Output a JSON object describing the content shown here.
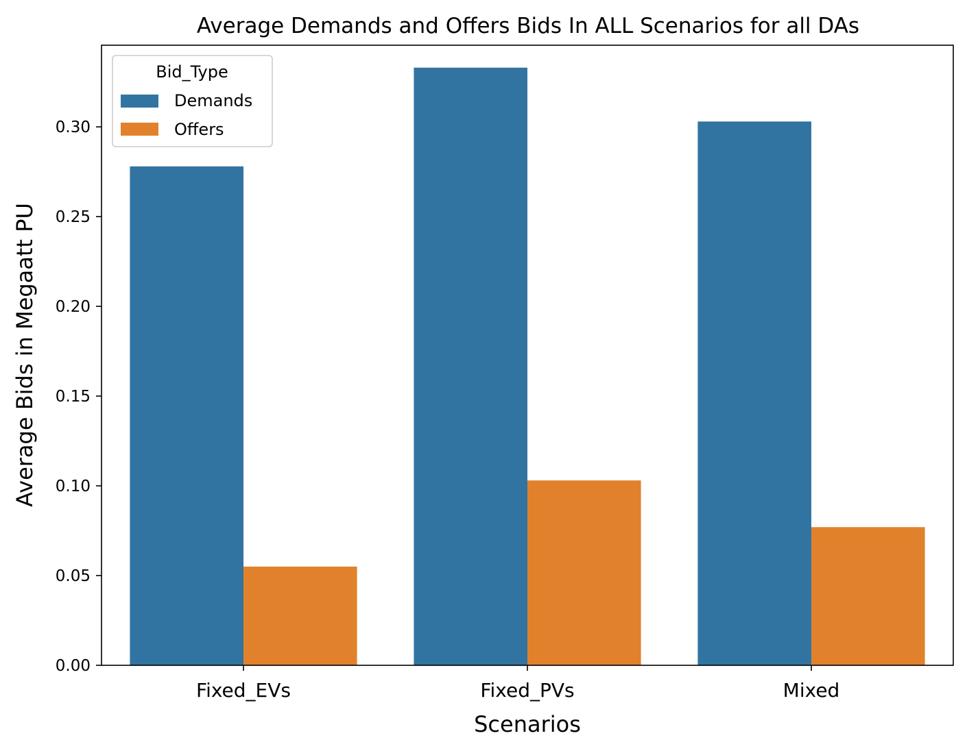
{
  "chart_data": {
    "type": "bar",
    "title": "Average Demands and Offers Bids In ALL Scenarios for all DAs",
    "xlabel": "Scenarios",
    "ylabel": "Average Bids in Megaatt PU",
    "categories": [
      "Fixed_EVs",
      "Fixed_PVs",
      "Mixed"
    ],
    "series": [
      {
        "name": "Demands",
        "values": [
          0.278,
          0.333,
          0.303
        ],
        "color": "#3274a1"
      },
      {
        "name": "Offers",
        "values": [
          0.055,
          0.103,
          0.077
        ],
        "color": "#e1812c"
      }
    ],
    "ylim": [
      0,
      0.3455
    ],
    "yticks": [
      "0.00",
      "0.05",
      "0.10",
      "0.15",
      "0.20",
      "0.25",
      "0.30"
    ],
    "grid": false,
    "legend": {
      "title": "Bid_Type",
      "placement": "top-left"
    }
  }
}
